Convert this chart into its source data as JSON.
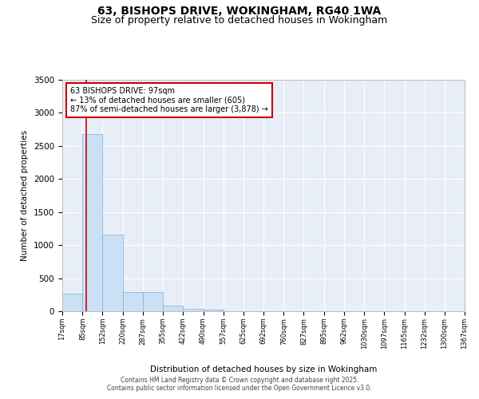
{
  "title": "63, BISHOPS DRIVE, WOKINGHAM, RG40 1WA",
  "subtitle": "Size of property relative to detached houses in Wokingham",
  "xlabel": "Distribution of detached houses by size in Wokingham",
  "ylabel": "Number of detached properties",
  "bin_edges": [
    17,
    85,
    152,
    220,
    287,
    355,
    422,
    490,
    557,
    625,
    692,
    760,
    827,
    895,
    962,
    1030,
    1097,
    1165,
    1232,
    1300,
    1367
  ],
  "bar_heights": [
    270,
    2680,
    1160,
    290,
    290,
    80,
    40,
    30,
    5,
    2,
    1,
    1,
    0,
    0,
    0,
    0,
    0,
    0,
    0,
    0
  ],
  "bar_color": "#cce0f5",
  "bar_edge_color": "#7ab0d8",
  "property_line_x": 97,
  "property_line_color": "#cc0000",
  "annotation_text": "63 BISHOPS DRIVE: 97sqm\n← 13% of detached houses are smaller (605)\n87% of semi-detached houses are larger (3,878) →",
  "annotation_box_color": "#ffffff",
  "annotation_box_edge_color": "#cc0000",
  "ylim": [
    0,
    3500
  ],
  "yticks": [
    0,
    500,
    1000,
    1500,
    2000,
    2500,
    3000,
    3500
  ],
  "background_color": "#e8eef8",
  "grid_color": "#ffffff",
  "title_fontsize": 10,
  "subtitle_fontsize": 9,
  "footer_text": "Contains HM Land Registry data © Crown copyright and database right 2025.\nContains public sector information licensed under the Open Government Licence v3.0."
}
